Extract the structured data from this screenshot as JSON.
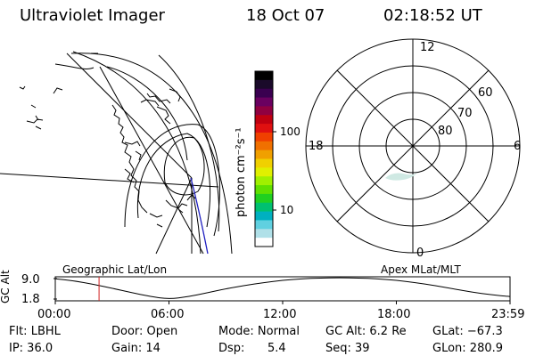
{
  "header": {
    "instrument": "Ultraviolet Imager",
    "date": "18 Oct 07",
    "time": "02:18:52 UT"
  },
  "colorbar": {
    "units": "photon cm⁻²s⁻¹",
    "ticks": [
      "100",
      "10"
    ],
    "colors": [
      "#000000",
      "#1a0a2a",
      "#3a0050",
      "#6a0060",
      "#900040",
      "#c00010",
      "#e01010",
      "#f04000",
      "#f07000",
      "#f0a000",
      "#f0d000",
      "#e0f000",
      "#a0f000",
      "#60e000",
      "#20d020",
      "#00c070",
      "#00b0c0",
      "#60d0e0",
      "#b0e0e8",
      "#ffffff"
    ]
  },
  "left_map": {
    "label": "Geographic Lat/Lon"
  },
  "polar_plot": {
    "label": "Apex MLat/MLT",
    "hour_labels": {
      "top": "12",
      "left": "18",
      "right": "6",
      "bottom": "0"
    },
    "lat_labels": [
      "60",
      "70",
      "80"
    ]
  },
  "timeline": {
    "ylabel": "GC Alt",
    "yticks": [
      "9.0",
      "1.8"
    ],
    "xticks": [
      "00:00",
      "06:00",
      "12:00",
      "18:00",
      "23:59"
    ]
  },
  "chart_data": {
    "type": "line",
    "title": "",
    "xlabel": "",
    "ylabel": "GC Alt",
    "x_hours": [
      0,
      1,
      2,
      3,
      4,
      5,
      6,
      7,
      8,
      9,
      10,
      11,
      12,
      13,
      14,
      15,
      16,
      17,
      18,
      19,
      20,
      21,
      22,
      23,
      24
    ],
    "y_alt": [
      8.9,
      8.2,
      7.0,
      5.6,
      4.1,
      2.7,
      1.8,
      2.6,
      4.0,
      5.4,
      6.6,
      7.6,
      8.4,
      8.9,
      9.2,
      9.3,
      9.2,
      8.9,
      8.4,
      7.6,
      6.6,
      5.4,
      4.2,
      3.3,
      2.7
    ],
    "ylim": [
      1.8,
      9.0
    ],
    "xlim": [
      0,
      24
    ],
    "current_time_hours": 2.31
  },
  "footer": {
    "flt": "Flt: LBHL",
    "ip": "IP: 36.0",
    "door": "Door: Open",
    "gain": "Gain: 14",
    "mode": "Mode: Normal",
    "dsp": "Dsp:",
    "dsp_value": "5.4",
    "gc_alt": "GC Alt: 6.2 Re",
    "seq": "Seq: 39",
    "glat": "GLat: −67.3",
    "glon": "GLon: 280.9"
  }
}
